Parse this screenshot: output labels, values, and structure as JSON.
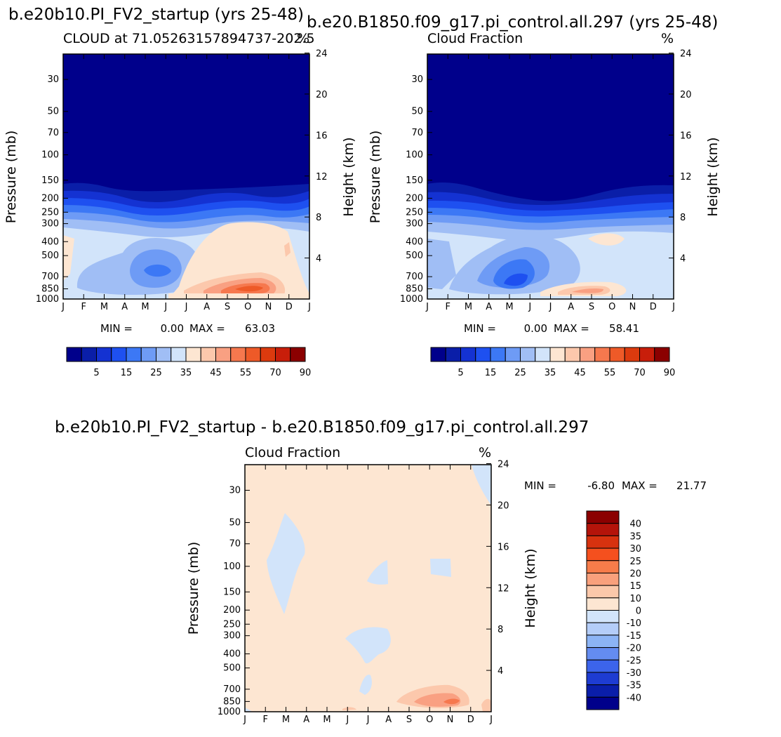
{
  "figure": {
    "left_case_title": "b.e20b10.PI_FV2_startup (yrs 25-48)",
    "right_case_title": "b.e20.B1850.f09_g17.pi_control.all.297 (yrs 25-48)",
    "diff_title": "b.e20b10.PI_FV2_startup - b.e20.B1850.f09_g17.pi_control.all.297"
  },
  "chart_data": [
    {
      "type": "heatmap",
      "panel": "left",
      "title": "CLOUD at 71.05263157894737-202.5",
      "units": "%",
      "xlabel": "",
      "ylabel": "Pressure (mb)",
      "ylabel_right": "Height (km)",
      "x_ticks": [
        "J",
        "F",
        "M",
        "A",
        "M",
        "J",
        "J",
        "A",
        "S",
        "O",
        "N",
        "D",
        "J"
      ],
      "y_ticks": [
        30,
        50,
        70,
        100,
        150,
        200,
        250,
        300,
        400,
        500,
        700,
        850,
        1000
      ],
      "y_ticks_right": [
        24,
        20,
        16,
        12,
        8,
        4
      ],
      "y_scale": "log",
      "ylim": [
        1000,
        20
      ],
      "min_label": "MIN =",
      "min_value": "0.00",
      "max_label": "MAX =",
      "max_value": "63.03",
      "colorbar_labels": [
        "5",
        "15",
        "25",
        "35",
        "45",
        "55",
        "70",
        "90"
      ],
      "color_levels": 15
    },
    {
      "type": "heatmap",
      "panel": "right",
      "title": "Cloud Fraction",
      "units": "%",
      "xlabel": "",
      "ylabel": "Pressure (mb)",
      "ylabel_right": "Height (km)",
      "x_ticks": [
        "J",
        "F",
        "M",
        "A",
        "M",
        "J",
        "J",
        "A",
        "S",
        "O",
        "N",
        "D",
        "J"
      ],
      "y_ticks": [
        30,
        50,
        70,
        100,
        150,
        200,
        250,
        300,
        400,
        500,
        700,
        850,
        1000
      ],
      "y_ticks_right": [
        24,
        20,
        16,
        12,
        8,
        4
      ],
      "y_scale": "log",
      "ylim": [
        1000,
        20
      ],
      "min_label": "MIN =",
      "min_value": "0.00",
      "max_label": "MAX =",
      "max_value": "58.41",
      "colorbar_labels": [
        "5",
        "15",
        "25",
        "35",
        "45",
        "55",
        "70",
        "90"
      ],
      "color_levels": 15
    },
    {
      "type": "heatmap",
      "panel": "difference",
      "title": "Cloud Fraction",
      "units": "%",
      "xlabel": "",
      "ylabel": "Pressure (mb)",
      "ylabel_right": "Height (km)",
      "x_ticks": [
        "J",
        "F",
        "M",
        "A",
        "M",
        "J",
        "J",
        "A",
        "S",
        "O",
        "N",
        "D",
        "J"
      ],
      "y_ticks": [
        30,
        50,
        70,
        100,
        150,
        200,
        250,
        300,
        400,
        500,
        700,
        850,
        1000
      ],
      "y_ticks_right": [
        24,
        20,
        16,
        12,
        8,
        4
      ],
      "y_scale": "log",
      "ylim": [
        1000,
        20
      ],
      "min_label": "MIN =",
      "min_value": "-6.80",
      "max_label": "MAX =",
      "max_value": "21.77",
      "colorbar_labels": [
        "40",
        "35",
        "30",
        "25",
        "20",
        "15",
        "10",
        "0",
        "-10",
        "-15",
        "-20",
        "-25",
        "-30",
        "-35",
        "-40"
      ]
    }
  ],
  "colors": {
    "seq_palette": [
      "#00008b",
      "#0a1ea8",
      "#1432d2",
      "#1e50f0",
      "#3c78f5",
      "#6e9bf5",
      "#a0bef5",
      "#d2e4fa",
      "#fde6d2",
      "#fcc8ac",
      "#f9a082",
      "#f6784e",
      "#ee5a28",
      "#dc3a0e",
      "#c81e0a",
      "#8b0000"
    ],
    "diff_palette": [
      "#8b0000",
      "#b4140a",
      "#d7320f",
      "#f5501e",
      "#f77c4a",
      "#f9a07c",
      "#fbc8aa",
      "#fde6d2",
      "#d2e4fa",
      "#b4cdf8",
      "#8cb4f5",
      "#648cf0",
      "#3c64eb",
      "#1e3cd2",
      "#0a1eaa",
      "#00008b"
    ],
    "background": "#ffffff",
    "axis": "#000000"
  }
}
